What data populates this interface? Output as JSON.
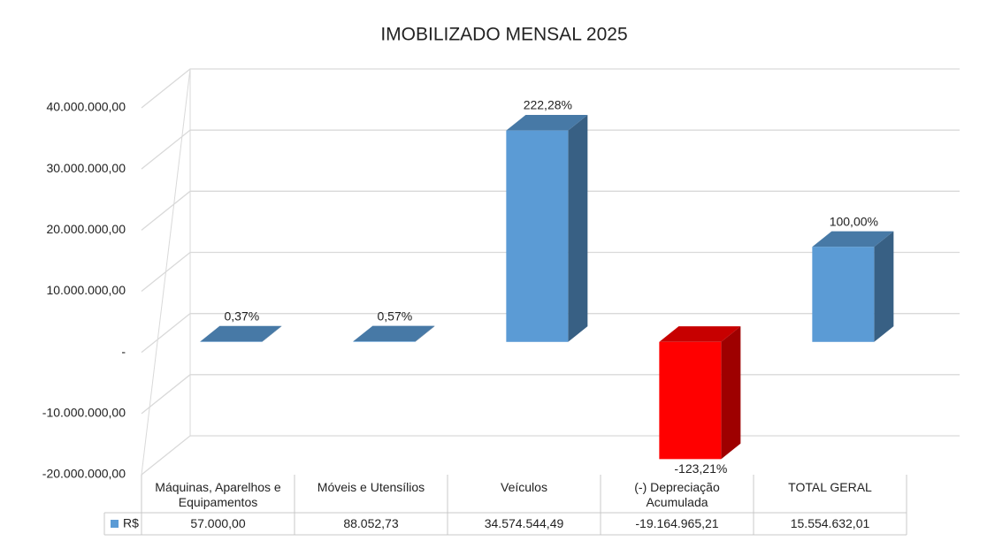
{
  "chart_data": {
    "type": "bar3d",
    "title": "IMOBILIZADO MENSAL 2025",
    "categories": [
      "Máquinas, Aparelhos e Equipamentos",
      "Móveis e Utensílios",
      "Veículos",
      "(-) Depreciação Acumulada",
      "TOTAL GERAL"
    ],
    "series": [
      {
        "name": "R$",
        "color": "#5b9bd5",
        "negative_color": "#ff0000",
        "values": [
          57000,
          88052.73,
          34574544.49,
          -19164965.21,
          15554632.01
        ],
        "value_labels": [
          "57.000,00",
          "88.052,73",
          "34.574.544,49",
          "-19.164.965,21",
          "15.554.632,01"
        ],
        "point_labels": [
          "0,37%",
          "0,57%",
          "222,28%",
          "-123,21%",
          "100,00%"
        ]
      }
    ],
    "ylim": [
      -20000000,
      40000000
    ],
    "yticks": [
      {
        "value": -20000000,
        "label": "-20.000.000,00"
      },
      {
        "value": -10000000,
        "label": "-10.000.000,00"
      },
      {
        "value": 0,
        "label": "-"
      },
      {
        "value": 10000000,
        "label": "10.000.000,00"
      },
      {
        "value": 20000000,
        "label": "20.000.000,00"
      },
      {
        "value": 30000000,
        "label": "30.000.000,00"
      },
      {
        "value": 40000000,
        "label": "40.000.000,00"
      }
    ],
    "grid": true,
    "data_table": true
  }
}
